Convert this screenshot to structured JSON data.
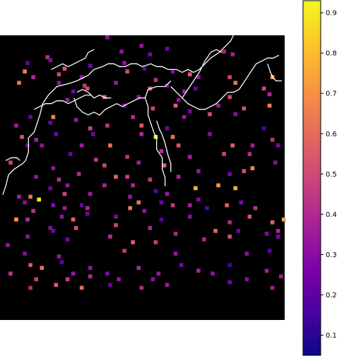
{
  "chart_data": {
    "type": "heatmap",
    "title": "",
    "xlabel": "",
    "ylabel": "",
    "axes_visible": false,
    "background": "#000000",
    "colormap": "plasma",
    "colorbar": {
      "range": [
        0.05,
        0.93
      ],
      "ticks": [
        0.1,
        0.2,
        0.3,
        0.4,
        0.5,
        0.6,
        0.7,
        0.8,
        0.9
      ],
      "tick_labels": [
        "0.1",
        "0.2",
        "0.3",
        "0.4",
        "0.5",
        "0.6",
        "0.7",
        "0.8",
        "0.9"
      ]
    },
    "grid_size": [
      100,
      100
    ],
    "points": [
      [
        37,
        0,
        0.32
      ],
      [
        49,
        3,
        0.34
      ],
      [
        16,
        7,
        0.42
      ],
      [
        9,
        9,
        0.21
      ],
      [
        17,
        8,
        0.3
      ],
      [
        42,
        5,
        0.33
      ],
      [
        52,
        6,
        0.27
      ],
      [
        58,
        4,
        0.23
      ],
      [
        78,
        5,
        0.37
      ],
      [
        8,
        12,
        0.66
      ],
      [
        22,
        11,
        0.55
      ],
      [
        31,
        10,
        0.26
      ],
      [
        43,
        9,
        0.32
      ],
      [
        50,
        11,
        0.19
      ],
      [
        81,
        6,
        0.36
      ],
      [
        11,
        14,
        0.4
      ],
      [
        20,
        13,
        0.48
      ],
      [
        28,
        14,
        0.33
      ],
      [
        44,
        12,
        0.49
      ],
      [
        60,
        12,
        0.3
      ],
      [
        66,
        13,
        0.55
      ],
      [
        6,
        16,
        0.62
      ],
      [
        20,
        16,
        0.33
      ],
      [
        29,
        17,
        0.44
      ],
      [
        40,
        16,
        0.35
      ],
      [
        54,
        15,
        0.42
      ],
      [
        69,
        14,
        0.32
      ],
      [
        80,
        14,
        0.47
      ],
      [
        95,
        14,
        0.71
      ],
      [
        25,
        19,
        0.26
      ],
      [
        30,
        18,
        0.5
      ],
      [
        52,
        18,
        0.54
      ],
      [
        58,
        17,
        0.28
      ],
      [
        64,
        19,
        0.35
      ],
      [
        68,
        18,
        0.22
      ],
      [
        82,
        16,
        0.63
      ],
      [
        23,
        22,
        0.36
      ],
      [
        36,
        21,
        0.57
      ],
      [
        48,
        21,
        0.34
      ],
      [
        62,
        22,
        0.32
      ],
      [
        80,
        21,
        0.49
      ],
      [
        92,
        18,
        0.5
      ],
      [
        94,
        20,
        0.39
      ],
      [
        43,
        24,
        0.29
      ],
      [
        53,
        25,
        0.48
      ],
      [
        61,
        24,
        0.58
      ],
      [
        66,
        26,
        0.26
      ],
      [
        76,
        24,
        0.34
      ],
      [
        85,
        25,
        0.52
      ],
      [
        94,
        24,
        0.64
      ],
      [
        10,
        28,
        0.22
      ],
      [
        18,
        28,
        0.66
      ],
      [
        26,
        29,
        0.34
      ],
      [
        46,
        28,
        0.4
      ],
      [
        64,
        28,
        0.34
      ],
      [
        73,
        27,
        0.5
      ],
      [
        82,
        27,
        0.31
      ],
      [
        5,
        31,
        0.35
      ],
      [
        17,
        30,
        0.24
      ],
      [
        31,
        32,
        0.48
      ],
      [
        37,
        31,
        0.44
      ],
      [
        49,
        31,
        0.56
      ],
      [
        58,
        32,
        0.26
      ],
      [
        92,
        32,
        0.16
      ],
      [
        7,
        35,
        0.52
      ],
      [
        12,
        36,
        0.37
      ],
      [
        19,
        34,
        0.24
      ],
      [
        32,
        34,
        0.25
      ],
      [
        49,
        34,
        0.4
      ],
      [
        54,
        35,
        0.88
      ],
      [
        60,
        35,
        0.61
      ],
      [
        73,
        34,
        0.3
      ],
      [
        95,
        36,
        0.43
      ],
      [
        9,
        38,
        0.23
      ],
      [
        14,
        38,
        0.32
      ],
      [
        28,
        38,
        0.35
      ],
      [
        38,
        38,
        0.61
      ],
      [
        62,
        38,
        0.53
      ],
      [
        81,
        38,
        0.56
      ],
      [
        88,
        38,
        0.36
      ],
      [
        97,
        38,
        0.28
      ],
      [
        24,
        41,
        0.25
      ],
      [
        33,
        43,
        0.44
      ],
      [
        44,
        42,
        0.42
      ],
      [
        56,
        40,
        0.41
      ],
      [
        66,
        42,
        0.36
      ],
      [
        78,
        41,
        0.48
      ],
      [
        87,
        41,
        0.41
      ],
      [
        3,
        44,
        0.49
      ],
      [
        18,
        46,
        0.33
      ],
      [
        27,
        48,
        0.4
      ],
      [
        36,
        45,
        0.48
      ],
      [
        48,
        44,
        0.35
      ],
      [
        57,
        45,
        0.58
      ],
      [
        69,
        47,
        0.34
      ],
      [
        85,
        47,
        0.52
      ],
      [
        88,
        46,
        0.68
      ],
      [
        96,
        44,
        0.31
      ],
      [
        12,
        49,
        0.33
      ],
      [
        20,
        50,
        0.42
      ],
      [
        40,
        49,
        0.57
      ],
      [
        44,
        49,
        0.47
      ],
      [
        52,
        50,
        0.44
      ],
      [
        62,
        49,
        0.39
      ],
      [
        80,
        48,
        0.27
      ],
      [
        17,
        53,
        0.24
      ],
      [
        23,
        52,
        0.34
      ],
      [
        36,
        52,
        0.38
      ],
      [
        46,
        52,
        0.39
      ],
      [
        54,
        54,
        0.2
      ],
      [
        68,
        53,
        0.78
      ],
      [
        76,
        52,
        0.7
      ],
      [
        82,
        53,
        0.77
      ],
      [
        6,
        56,
        0.36
      ],
      [
        10,
        56,
        0.62
      ],
      [
        22,
        55,
        0.48
      ],
      [
        31,
        55,
        0.36
      ],
      [
        45,
        56,
        0.34
      ],
      [
        58,
        55,
        0.34
      ],
      [
        69,
        57,
        0.28
      ],
      [
        8,
        58,
        0.3
      ],
      [
        13,
        57,
        0.89
      ],
      [
        18,
        59,
        0.3
      ],
      [
        28,
        59,
        0.22
      ],
      [
        48,
        58,
        0.63
      ],
      [
        56,
        58,
        0.22
      ],
      [
        60,
        59,
        0.46
      ],
      [
        66,
        59,
        0.36
      ],
      [
        79,
        59,
        0.56
      ],
      [
        84,
        58,
        0.27
      ],
      [
        11,
        61,
        0.43
      ],
      [
        22,
        60,
        0.35
      ],
      [
        30,
        60,
        0.39
      ],
      [
        45,
        60,
        0.65
      ],
      [
        50,
        61,
        0.33
      ],
      [
        72,
        60,
        0.19
      ],
      [
        89,
        60,
        0.42
      ],
      [
        5,
        64,
        0.72
      ],
      [
        9,
        64,
        0.4
      ],
      [
        21,
        63,
        0.31
      ],
      [
        25,
        64,
        0.58
      ],
      [
        30,
        62,
        0.25
      ],
      [
        40,
        63,
        0.28
      ],
      [
        56,
        64,
        0.19
      ],
      [
        66,
        63,
        0.3
      ],
      [
        87,
        63,
        0.52
      ],
      [
        99,
        64,
        0.75
      ],
      [
        17,
        67,
        0.31
      ],
      [
        26,
        67,
        0.51
      ],
      [
        40,
        66,
        0.47
      ],
      [
        52,
        67,
        0.39
      ],
      [
        80,
        65,
        0.4
      ],
      [
        95,
        65,
        0.57
      ],
      [
        9,
        70,
        0.31
      ],
      [
        18,
        68,
        0.26
      ],
      [
        38,
        70,
        0.41
      ],
      [
        61,
        69,
        0.38
      ],
      [
        75,
        68,
        0.58
      ],
      [
        83,
        68,
        0.26
      ],
      [
        93,
        69,
        0.29
      ],
      [
        97,
        68,
        0.4
      ],
      [
        2,
        73,
        0.34
      ],
      [
        23,
        71,
        0.25
      ],
      [
        46,
        72,
        0.55
      ],
      [
        54,
        72,
        0.46
      ],
      [
        71,
        71,
        0.39
      ],
      [
        80,
        70,
        0.52
      ],
      [
        97,
        70,
        0.27
      ],
      [
        8,
        76,
        0.3
      ],
      [
        20,
        77,
        0.34
      ],
      [
        43,
        75,
        0.44
      ],
      [
        61,
        76,
        0.34
      ],
      [
        86,
        76,
        0.31
      ],
      [
        94,
        75,
        0.21
      ],
      [
        10,
        80,
        0.53
      ],
      [
        14,
        81,
        0.62
      ],
      [
        21,
        79,
        0.19
      ],
      [
        31,
        81,
        0.33
      ],
      [
        48,
        81,
        0.4
      ],
      [
        63,
        80,
        0.26
      ],
      [
        80,
        80,
        0.16
      ],
      [
        3,
        83,
        0.43
      ],
      [
        25,
        83,
        0.33
      ],
      [
        31,
        84,
        0.4
      ],
      [
        37,
        83,
        0.27
      ],
      [
        55,
        83,
        0.33
      ],
      [
        69,
        82,
        0.37
      ],
      [
        93,
        82,
        0.36
      ],
      [
        12,
        85,
        0.46
      ],
      [
        23,
        85,
        0.46
      ],
      [
        41,
        85,
        0.33
      ],
      [
        53,
        85,
        0.31
      ],
      [
        74,
        83,
        0.32
      ],
      [
        86,
        85,
        0.3
      ],
      [
        98,
        84,
        0.36
      ],
      [
        10,
        88,
        0.4
      ],
      [
        19,
        87,
        0.56
      ],
      [
        28,
        88,
        0.6
      ],
      [
        38,
        87,
        0.24
      ],
      [
        49,
        88,
        0.4
      ],
      [
        58,
        87,
        0.35
      ],
      [
        80,
        86,
        0.26
      ],
      [
        95,
        88,
        0.36
      ]
    ],
    "contours": [
      [
        [
          1,
          56
        ],
        [
          2,
          53
        ],
        [
          3,
          49
        ],
        [
          5,
          47
        ],
        [
          8,
          45
        ],
        [
          9,
          44
        ],
        [
          10,
          41
        ],
        [
          10,
          36
        ],
        [
          12,
          34
        ],
        [
          13,
          31
        ],
        [
          14,
          28
        ],
        [
          15,
          24
        ],
        [
          17,
          21
        ],
        [
          20,
          18
        ],
        [
          24,
          17
        ],
        [
          27,
          16
        ],
        [
          29,
          15
        ],
        [
          31,
          14
        ],
        [
          33,
          12
        ],
        [
          36,
          11
        ],
        [
          38,
          10
        ],
        [
          40,
          10
        ],
        [
          42,
          11
        ],
        [
          44,
          11
        ],
        [
          46,
          10
        ],
        [
          48,
          10
        ],
        [
          50,
          11
        ],
        [
          53,
          10
        ],
        [
          55,
          11
        ],
        [
          57,
          11
        ],
        [
          59,
          12
        ],
        [
          62,
          12
        ],
        [
          64,
          13
        ],
        [
          66,
          12
        ],
        [
          68,
          13
        ],
        [
          70,
          12
        ],
        [
          72,
          10
        ],
        [
          74,
          8
        ],
        [
          77,
          6
        ],
        [
          79,
          4
        ],
        [
          81,
          2
        ],
        [
          82,
          0
        ]
      ],
      [
        [
          12,
          26
        ],
        [
          14,
          25
        ],
        [
          16,
          24
        ],
        [
          18,
          24
        ],
        [
          20,
          23
        ],
        [
          22,
          23
        ],
        [
          24,
          24
        ],
        [
          26,
          23
        ],
        [
          28,
          22
        ],
        [
          30,
          21
        ],
        [
          32,
          21
        ]
      ],
      [
        [
          2,
          44
        ],
        [
          4,
          43
        ],
        [
          6,
          43
        ],
        [
          7,
          44
        ]
      ],
      [
        [
          18,
          12
        ],
        [
          20,
          11
        ],
        [
          22,
          10
        ],
        [
          24,
          11
        ],
        [
          26,
          10
        ],
        [
          28,
          9
        ],
        [
          30,
          8
        ],
        [
          31,
          6
        ],
        [
          33,
          5
        ]
      ],
      [
        [
          26,
          22
        ],
        [
          27,
          25
        ],
        [
          29,
          27
        ],
        [
          31,
          28
        ],
        [
          33,
          27
        ],
        [
          35,
          28
        ],
        [
          37,
          26
        ],
        [
          39,
          25
        ],
        [
          41,
          24
        ],
        [
          43,
          25
        ],
        [
          45,
          24
        ],
        [
          47,
          23
        ],
        [
          49,
          22
        ],
        [
          51,
          22
        ],
        [
          52,
          19
        ],
        [
          55,
          18
        ],
        [
          58,
          18
        ],
        [
          60,
          16
        ]
      ],
      [
        [
          51,
          22
        ],
        [
          52,
          25
        ],
        [
          52,
          28
        ],
        [
          53,
          31
        ],
        [
          54,
          34
        ],
        [
          55,
          36
        ],
        [
          55,
          40
        ],
        [
          57,
          43
        ],
        [
          57,
          47
        ],
        [
          58,
          50
        ],
        [
          58,
          53
        ]
      ],
      [
        [
          55,
          30
        ],
        [
          56,
          33
        ],
        [
          57,
          35
        ],
        [
          58,
          38
        ],
        [
          59,
          42
        ],
        [
          60,
          45
        ],
        [
          60,
          48
        ]
      ],
      [
        [
          60,
          18
        ],
        [
          62,
          20
        ],
        [
          64,
          22
        ],
        [
          66,
          24
        ],
        [
          68,
          25
        ],
        [
          70,
          26
        ],
        [
          72,
          26
        ],
        [
          74,
          25
        ],
        [
          76,
          24
        ],
        [
          78,
          22
        ],
        [
          80,
          20
        ],
        [
          82,
          20
        ],
        [
          84,
          19
        ]
      ],
      [
        [
          64,
          22
        ],
        [
          66,
          19
        ],
        [
          68,
          16
        ],
        [
          70,
          13
        ],
        [
          72,
          9
        ],
        [
          74,
          6
        ],
        [
          76,
          5
        ],
        [
          78,
          6
        ]
      ],
      [
        [
          84,
          19
        ],
        [
          86,
          16
        ],
        [
          88,
          13
        ],
        [
          90,
          10
        ],
        [
          92,
          9
        ],
        [
          94,
          8
        ],
        [
          96,
          8
        ],
        [
          98,
          7
        ]
      ],
      [
        [
          94,
          10
        ],
        [
          95,
          13
        ],
        [
          96,
          15
        ],
        [
          97,
          16
        ],
        [
          99,
          16
        ]
      ],
      [
        [
          27,
          20
        ],
        [
          29,
          19
        ],
        [
          31,
          20
        ],
        [
          33,
          22
        ],
        [
          35,
          21
        ],
        [
          37,
          22
        ],
        [
          39,
          22
        ]
      ]
    ]
  }
}
